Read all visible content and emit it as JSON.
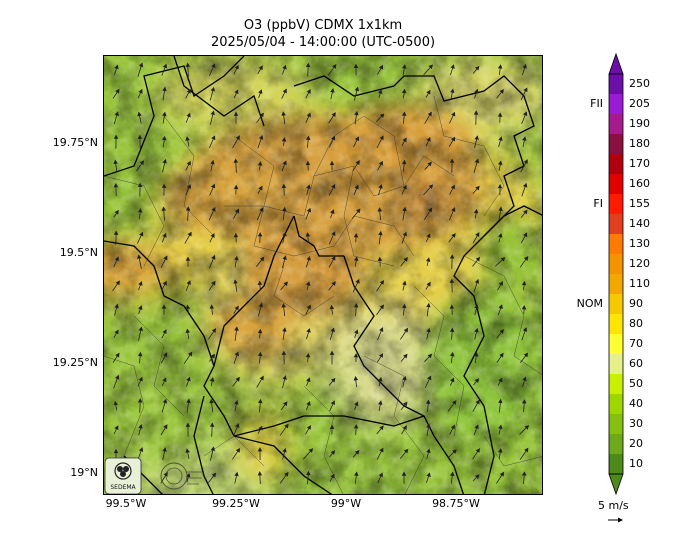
{
  "title": {
    "line1": "O3 (ppbV) CDMX 1x1km",
    "line2": "2025/05/04 - 14:00:00 (UTC-0500)"
  },
  "map": {
    "y_ticks": [
      "19.75°N",
      "19.5°N",
      "19.25°N",
      "19°N"
    ],
    "x_ticks": [
      "99.5°W",
      "99.25°W",
      "99°W",
      "98.75°W"
    ],
    "logos": [
      {
        "name": "sedema-logo",
        "text": "SEDEMA"
      },
      {
        "name": "cdmx-logo",
        "text": ""
      }
    ]
  },
  "colorbar": {
    "ticks": [
      "250",
      "205",
      "190",
      "180",
      "170",
      "160",
      "155",
      "140",
      "130",
      "120",
      "110",
      "90",
      "80",
      "70",
      "60",
      "50",
      "40",
      "30",
      "20",
      "10"
    ],
    "thresholds": [
      {
        "label": "FII",
        "value": "205"
      },
      {
        "label": "FI",
        "value": "155"
      },
      {
        "label": "NOM",
        "value": "90"
      }
    ],
    "colors": [
      "#6b0fa8",
      "#9b1ad6",
      "#a61a8c",
      "#8a1040",
      "#b00010",
      "#e00000",
      "#ff1a00",
      "#e04020",
      "#ff7a00",
      "#f49400",
      "#f2a800",
      "#f6c800",
      "#ffe600",
      "#ffff33",
      "#e6f08a",
      "#c8f000",
      "#9ed600",
      "#85bf10",
      "#6ea81c",
      "#4e8a1a"
    ]
  },
  "wind": {
    "reference_label": "5 m/s"
  },
  "palette": {
    "ozone_high": "#d29a3c",
    "ozone_mid": "#e6c23a",
    "ozone_low": "#a7c53a",
    "terrain_green": "#8fbf3a",
    "boundary": "#000000"
  }
}
